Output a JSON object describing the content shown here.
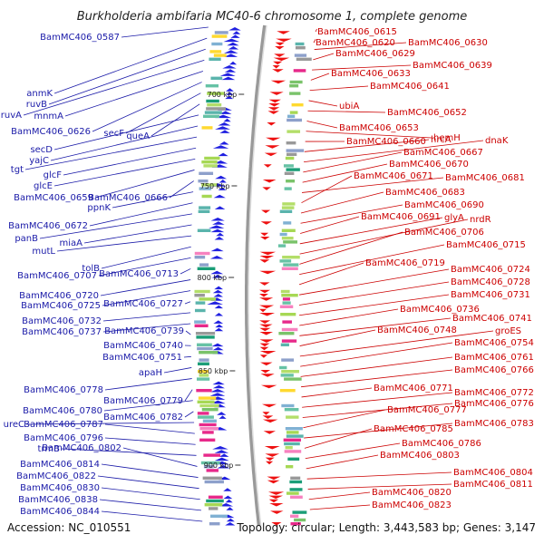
{
  "title": "Burkholderia ambifaria MC40-6 chromosome 1, complete genome",
  "footer": {
    "accession": "Accession: NC_010551",
    "topology": "Topology: circular; Length: 3,443,583 bp; Genes: 3,147"
  },
  "colors": {
    "left_label": "#1a1aa8",
    "right_label": "#cc0000",
    "forward_feature": "#1f1fe0",
    "reverse_feature": "#ee1111",
    "backbone": "#999999",
    "tick": "#2a8a2a"
  },
  "tick_labels": [
    "700 kbp",
    "750 kbp",
    "800 kbp",
    "850 kbp",
    "900 kbp"
  ],
  "left_labels": [
    "BamMC406_0587",
    "anmK",
    "ruvB",
    "ruvA",
    "mnmA",
    "BamMC406_0626",
    "secF",
    "queA",
    "secD",
    "yajC",
    "tgt",
    "glcF",
    "glcE",
    "BamMC406_0659",
    "BamMC406_0666",
    "ppnK",
    "BamMC406_0672",
    "panB",
    "miaA",
    "mutL",
    "tolB",
    "BamMC406_0707",
    "BamMC406_0713",
    "BamMC406_0720",
    "BamMC406_0725",
    "BamMC406_0727",
    "BamMC406_0732",
    "BamMC406_0737",
    "BamMC406_0739",
    "BamMC406_0740",
    "BamMC406_0751",
    "apaH",
    "BamMC406_0778",
    "BamMC406_0779",
    "BamMC406_0780",
    "BamMC406_0782",
    "ureC",
    "BamMC406_0787",
    "BamMC406_0796",
    "trmB",
    "BamMC406_0802",
    "BamMC406_0814",
    "BamMC406_0822",
    "BamMC406_0830",
    "BamMC406_0838",
    "BamMC406_0844"
  ],
  "right_labels": [
    "BamMC406_0615",
    "BamMC406_0620",
    "BamMC406_0630",
    "BamMC406_0629",
    "BamMC406_0639",
    "BamMC406_0633",
    "BamMC406_0641",
    "ubiA",
    "BamMC406_0652",
    "BamMC406_0653",
    "hemH",
    "BamMC406_0660",
    "hrcA",
    "dnaK",
    "BamMC406_0667",
    "BamMC406_0670",
    "BamMC406_0681",
    "BamMC406_0671",
    "BamMC406_0683",
    "BamMC406_0690",
    "BamMC406_0691",
    "glyA",
    "nrdR",
    "BamMC406_0706",
    "BamMC406_0715",
    "BamMC406_0719",
    "BamMC406_0724",
    "BamMC406_0728",
    "BamMC406_0731",
    "BamMC406_0736",
    "BamMC406_0741",
    "BamMC406_0748",
    "groES",
    "BamMC406_0754",
    "BamMC406_0761",
    "BamMC406_0766",
    "BamMC406_0771",
    "BamMC406_0772",
    "BamMC406_0776",
    "BamMC406_0777",
    "BamMC406_0783",
    "BamMC406_0785",
    "BamMC406_0786",
    "BamMC406_0803",
    "BamMC406_0804",
    "BamMC406_0811",
    "BamMC406_0820",
    "BamMC406_0823"
  ]
}
